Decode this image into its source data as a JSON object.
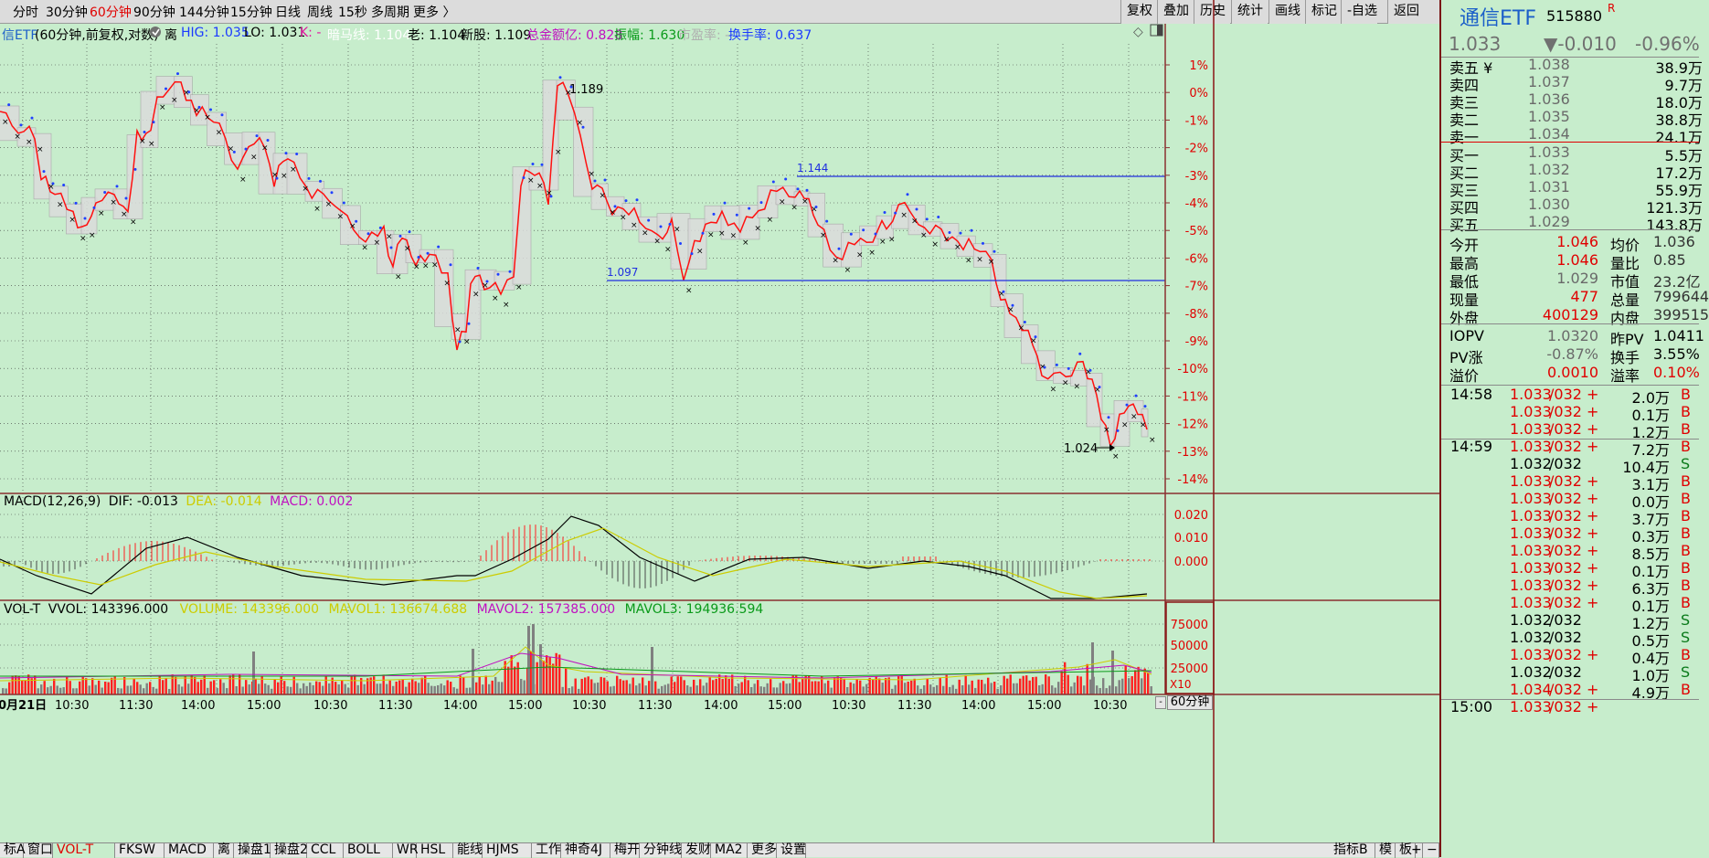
{
  "topbar": {
    "periods": [
      "分时",
      "30分钟",
      "60分钟",
      "90分钟",
      "144分钟",
      "15分钟",
      "日线",
      "周线",
      "15秒",
      "多周期",
      "更多 〉"
    ],
    "active_period": "60分钟",
    "right_buttons": [
      "复权",
      "叠加",
      "历史",
      "统计",
      "画线",
      "标记",
      "-自选",
      "返回"
    ]
  },
  "infobar": {
    "name": "信ETF",
    "desc": "(60分钟,前复权,对数)",
    "mark": "离",
    "hig": "HIG: 1.035",
    "lo": "LO: 1.031",
    "k": "K: -",
    "ring": "暗马线: 1.104",
    "old": "老: 1.104",
    "newstock": "新股: 1.109",
    "total": "总金额亿: 0.828",
    "amp": "振幅: 1.630",
    "pe": "市盈率: -",
    "turnover": "换手率: 0.637"
  },
  "main_chart": {
    "pct_labels": [
      "1%",
      "0%",
      "-1%",
      "-2%",
      "-3%",
      "-4%",
      "-5%",
      "-6%",
      "-7%",
      "-8%",
      "-9%",
      "-10%",
      "-11%",
      "-12%",
      "-13%",
      "-14%"
    ],
    "annotations": {
      "high_label": "1.189",
      "line1_label": "1.144",
      "line2_label": "1.097",
      "low_label": "1.024"
    }
  },
  "macd": {
    "title": "MACD(12,26,9)",
    "dif": "DIF: -0.013",
    "dea": "DEA: -0.014",
    "macd": "MACD: 0.002",
    "axis": [
      "0.020",
      "0.010",
      "0.000"
    ]
  },
  "vol": {
    "title": "VOL-T",
    "vvol": "VVOL: 143396.000",
    "volume": "VOLUME: 143396.000",
    "mavol1": "MAVOL1: 136674.688",
    "mavol2": "MAVOL2: 157385.000",
    "mavol3": "MAVOL3: 194936.594",
    "axis": [
      "75000",
      "50000",
      "25000"
    ],
    "multiplier": "X10"
  },
  "time_axis": {
    "labels": [
      "0月21日",
      "10:30",
      "11:30",
      "14:00",
      "15:00",
      "10:30",
      "11:30",
      "14:00",
      "15:00",
      "10:30",
      "11:30",
      "14:00",
      "15:00",
      "10:30",
      "11:30",
      "14:00",
      "15:00",
      "10:30"
    ],
    "period_box": "60分钟"
  },
  "bottom_tabs": [
    "标A",
    "窗口",
    "VOL-T",
    "FKSW",
    "MACD",
    "离",
    "操盘1",
    "操盘2",
    "CCL",
    "BOLL",
    "WR",
    "HSL",
    "能线",
    "HJMS",
    "工作",
    "神奇4J",
    "梅开",
    "分钟线",
    "发财",
    "MA2",
    "更多",
    "设置"
  ],
  "bottom_right": [
    "指标B",
    "模",
    "板"
  ],
  "quote": {
    "name": "通信ETF",
    "code": "515880",
    "flag": "R",
    "price": "1.033",
    "change": "▼-0.010",
    "change_pct": "-0.96%",
    "asks": [
      {
        "label": "卖五 ¥",
        "price": "1.038",
        "vol": "38.9万"
      },
      {
        "label": "卖四",
        "price": "1.037",
        "vol": "9.7万"
      },
      {
        "label": "卖三",
        "price": "1.036",
        "vol": "18.0万"
      },
      {
        "label": "卖二",
        "price": "1.035",
        "vol": "38.8万"
      },
      {
        "label": "卖一",
        "price": "1.034",
        "vol": "24.1万"
      }
    ],
    "bids": [
      {
        "label": "买一",
        "price": "1.033",
        "vol": "5.5万"
      },
      {
        "label": "买二",
        "price": "1.032",
        "vol": "17.2万"
      },
      {
        "label": "买三",
        "price": "1.031",
        "vol": "55.9万"
      },
      {
        "label": "买四",
        "price": "1.030",
        "vol": "121.3万"
      },
      {
        "label": "买五",
        "price": "1.029",
        "vol": "143.8万"
      }
    ],
    "stats": [
      {
        "l1": "今开",
        "v1": "1.046",
        "l2": "均价",
        "v2": "1.036"
      },
      {
        "l1": "最高",
        "v1": "1.046",
        "l2": "量比",
        "v2": "0.85"
      },
      {
        "l1": "最低",
        "v1": "1.029",
        "l2": "市值",
        "v2": "23.2亿"
      },
      {
        "l1": "现量",
        "v1": "477",
        "l2": "总量",
        "v2": "799644"
      },
      {
        "l1": "外盘",
        "v1": "400129",
        "l2": "内盘",
        "v2": "399515"
      }
    ],
    "iopv": [
      {
        "l1": "IOPV",
        "v1": "1.0320",
        "l2": "昨PV",
        "v2": "1.0411"
      },
      {
        "l1": "PV涨",
        "v1": "-0.87%",
        "l2": "换手",
        "v2": "3.55%"
      },
      {
        "l1": "溢价",
        "v1": "0.0010",
        "l2": "溢率",
        "v2": "0.10%"
      }
    ],
    "ticks": [
      {
        "time": "14:58",
        "price": "1.033",
        "mark": "/032 +",
        "vol": "2.0万",
        "bs": "B"
      },
      {
        "time": "",
        "price": "1.033",
        "mark": "/032 +",
        "vol": "0.1万",
        "bs": "B"
      },
      {
        "time": "",
        "price": "1.033",
        "mark": "/032 +",
        "vol": "1.2万",
        "bs": "B"
      },
      {
        "time": "14:59",
        "price": "1.033",
        "mark": "/032 +",
        "vol": "7.2万",
        "bs": "B"
      },
      {
        "time": "",
        "price": "1.032",
        "mark": "/032",
        "vol": "10.4万",
        "bs": "S"
      },
      {
        "time": "",
        "price": "1.033",
        "mark": "/032 +",
        "vol": "3.1万",
        "bs": "B"
      },
      {
        "time": "",
        "price": "1.033",
        "mark": "/032 +",
        "vol": "0.0万",
        "bs": "B"
      },
      {
        "time": "",
        "price": "1.033",
        "mark": "/032 +",
        "vol": "3.7万",
        "bs": "B"
      },
      {
        "time": "",
        "price": "1.033",
        "mark": "/032 +",
        "vol": "0.3万",
        "bs": "B"
      },
      {
        "time": "",
        "price": "1.033",
        "mark": "/032 +",
        "vol": "8.5万",
        "bs": "B"
      },
      {
        "time": "",
        "price": "1.033",
        "mark": "/032 +",
        "vol": "0.1万",
        "bs": "B"
      },
      {
        "time": "",
        "price": "1.033",
        "mark": "/032 +",
        "vol": "6.3万",
        "bs": "B"
      },
      {
        "time": "",
        "price": "1.033",
        "mark": "/032 +",
        "vol": "0.1万",
        "bs": "B"
      },
      {
        "time": "",
        "price": "1.032",
        "mark": "/032",
        "vol": "1.2万",
        "bs": "S"
      },
      {
        "time": "",
        "price": "1.032",
        "mark": "/032",
        "vol": "0.5万",
        "bs": "S"
      },
      {
        "time": "",
        "price": "1.033",
        "mark": "/032 +",
        "vol": "0.4万",
        "bs": "B"
      },
      {
        "time": "",
        "price": "1.032",
        "mark": "/032",
        "vol": "1.0万",
        "bs": "S"
      },
      {
        "time": "",
        "price": "1.034",
        "mark": "/032 +",
        "vol": "4.9万",
        "bs": "B"
      },
      {
        "time": "15:00",
        "price": "1.033",
        "mark": "/032 +",
        "vol": "",
        "bs": ""
      }
    ]
  }
}
